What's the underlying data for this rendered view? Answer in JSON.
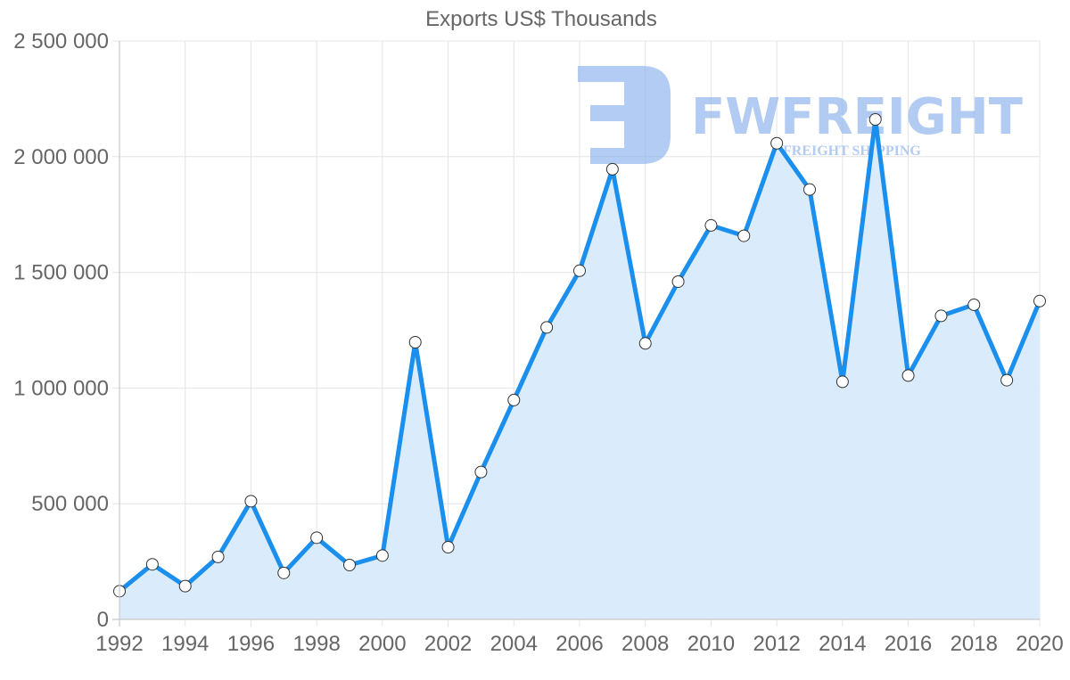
{
  "chart_data": {
    "type": "area",
    "title": "Exports US$ Thousands",
    "xlabel": "",
    "ylabel": "",
    "x": [
      1992,
      1993,
      1994,
      1995,
      1996,
      1997,
      1998,
      1999,
      2000,
      2001,
      2002,
      2003,
      2004,
      2005,
      2006,
      2007,
      2008,
      2009,
      2010,
      2011,
      2012,
      2013,
      2014,
      2015,
      2016,
      2017,
      2018,
      2019,
      2020
    ],
    "series": [
      {
        "name": "Exports US$ Thousands",
        "values": [
          122000,
          238000,
          144000,
          270000,
          511000,
          201000,
          353000,
          235000,
          276000,
          1198000,
          312000,
          637000,
          948000,
          1262000,
          1507000,
          1946000,
          1193000,
          1460000,
          1703000,
          1658000,
          2058000,
          1858000,
          1027000,
          2161000,
          1054000,
          1312000,
          1360000,
          1034000,
          1376000
        ]
      }
    ],
    "ylim": [
      0,
      2500000
    ],
    "yticks": [
      0,
      500000,
      1000000,
      1500000,
      2000000,
      2500000
    ],
    "ytick_labels": [
      "0",
      "500 000",
      "1 000 000",
      "1 500 000",
      "2 000 000",
      "2 500 000"
    ],
    "xtick_labels": [
      "1992",
      "1994",
      "1996",
      "1998",
      "2000",
      "2002",
      "2004",
      "2006",
      "2008",
      "2010",
      "2012",
      "2014",
      "2016",
      "2018",
      "2020"
    ],
    "grid": true,
    "legend": "none",
    "colors": {
      "line": "#1a8fee",
      "fill": "#d8ebfc",
      "point_fill": "#ffffff",
      "point_stroke": "#333333",
      "grid": "#e4e4e4",
      "axis_text": "#666666"
    }
  },
  "watermark": {
    "brand": "FWFREIGHT",
    "tagline": "FREIGHT SHIPPING",
    "color": "#8ab0ec"
  }
}
